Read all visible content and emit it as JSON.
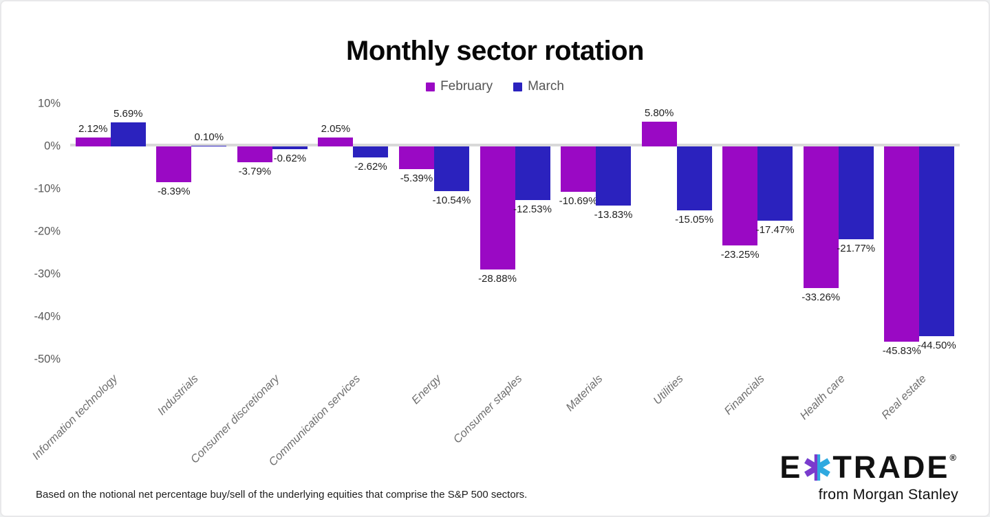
{
  "title": "Monthly sector rotation",
  "legend": [
    {
      "label": "February",
      "color": "#9A09C4"
    },
    {
      "label": "March",
      "color": "#2B22BE"
    }
  ],
  "chart_data": {
    "type": "bar",
    "title": "Monthly sector rotation",
    "categories": [
      "Information technology",
      "Industrials",
      "Consumer discretionary",
      "Communication services",
      "Energy",
      "Consumer staples",
      "Materials",
      "Utilities",
      "Financials",
      "Health care",
      "Real estate"
    ],
    "series": [
      {
        "name": "February",
        "color": "#9A09C4",
        "values": [
          2.12,
          -8.39,
          -3.79,
          2.05,
          -5.39,
          -28.88,
          -10.69,
          5.8,
          -23.25,
          -33.26,
          -45.83
        ]
      },
      {
        "name": "March",
        "color": "#2B22BE",
        "values": [
          5.69,
          0.1,
          -0.62,
          -2.62,
          -10.54,
          -12.53,
          -13.83,
          -15.05,
          -17.47,
          -21.77,
          -44.5
        ]
      }
    ],
    "ylim": [
      -50,
      10
    ],
    "yticks": [
      "10%",
      "0%",
      "-10%",
      "-20%",
      "-30%",
      "-40%",
      "-50%"
    ],
    "grid": false,
    "legend_position": "top-center",
    "value_labels": "each bar labeled with percent to 2 decimals",
    "zero_line_color": "#d9d9d9",
    "xlabel": "",
    "ylabel": ""
  },
  "footnote": "Based on the notional net percentage buy/sell of the underlying equities that comprise the S&P 500 sectors.",
  "logo": {
    "brand_left": "E",
    "brand_right": "TRADE",
    "registered": "®",
    "tagline": "from Morgan Stanley",
    "star_purple": "#7B3BCD",
    "star_cyan": "#2FA9E0"
  }
}
